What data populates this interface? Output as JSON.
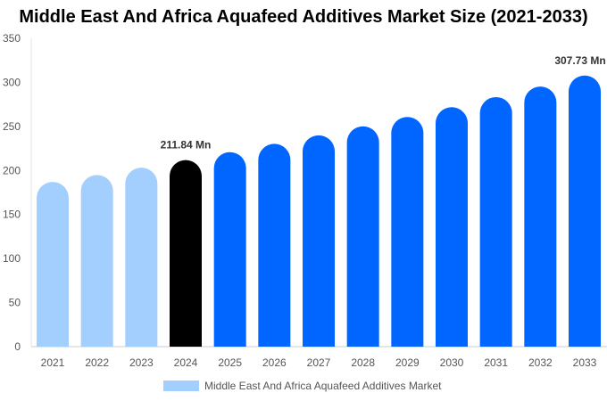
{
  "chart_data": {
    "type": "bar",
    "title": "Middle East And Africa Aquafeed Additives Market Size (2021-2033)",
    "categories": [
      "2021",
      "2022",
      "2023",
      "2024",
      "2025",
      "2026",
      "2027",
      "2028",
      "2029",
      "2030",
      "2031",
      "2032",
      "2033"
    ],
    "series": [
      {
        "name": "Middle East And Africa Aquafeed Additives Market",
        "values": [
          187.0,
          194.9,
          203.2,
          211.84,
          220.8,
          230.2,
          239.9,
          250.1,
          260.7,
          271.8,
          283.3,
          295.3,
          307.73
        ]
      }
    ],
    "data_labels": {
      "2024": "211.84 Mn",
      "2033": "307.73 Mn"
    },
    "ylim": [
      0,
      350
    ],
    "yticks": [
      0,
      50,
      100,
      150,
      200,
      250,
      300,
      350
    ],
    "grid": false,
    "legend": "bottom",
    "colors": {
      "historical": "#a3cfff",
      "base_year": "#000000",
      "forecast": "#0066ff"
    }
  }
}
